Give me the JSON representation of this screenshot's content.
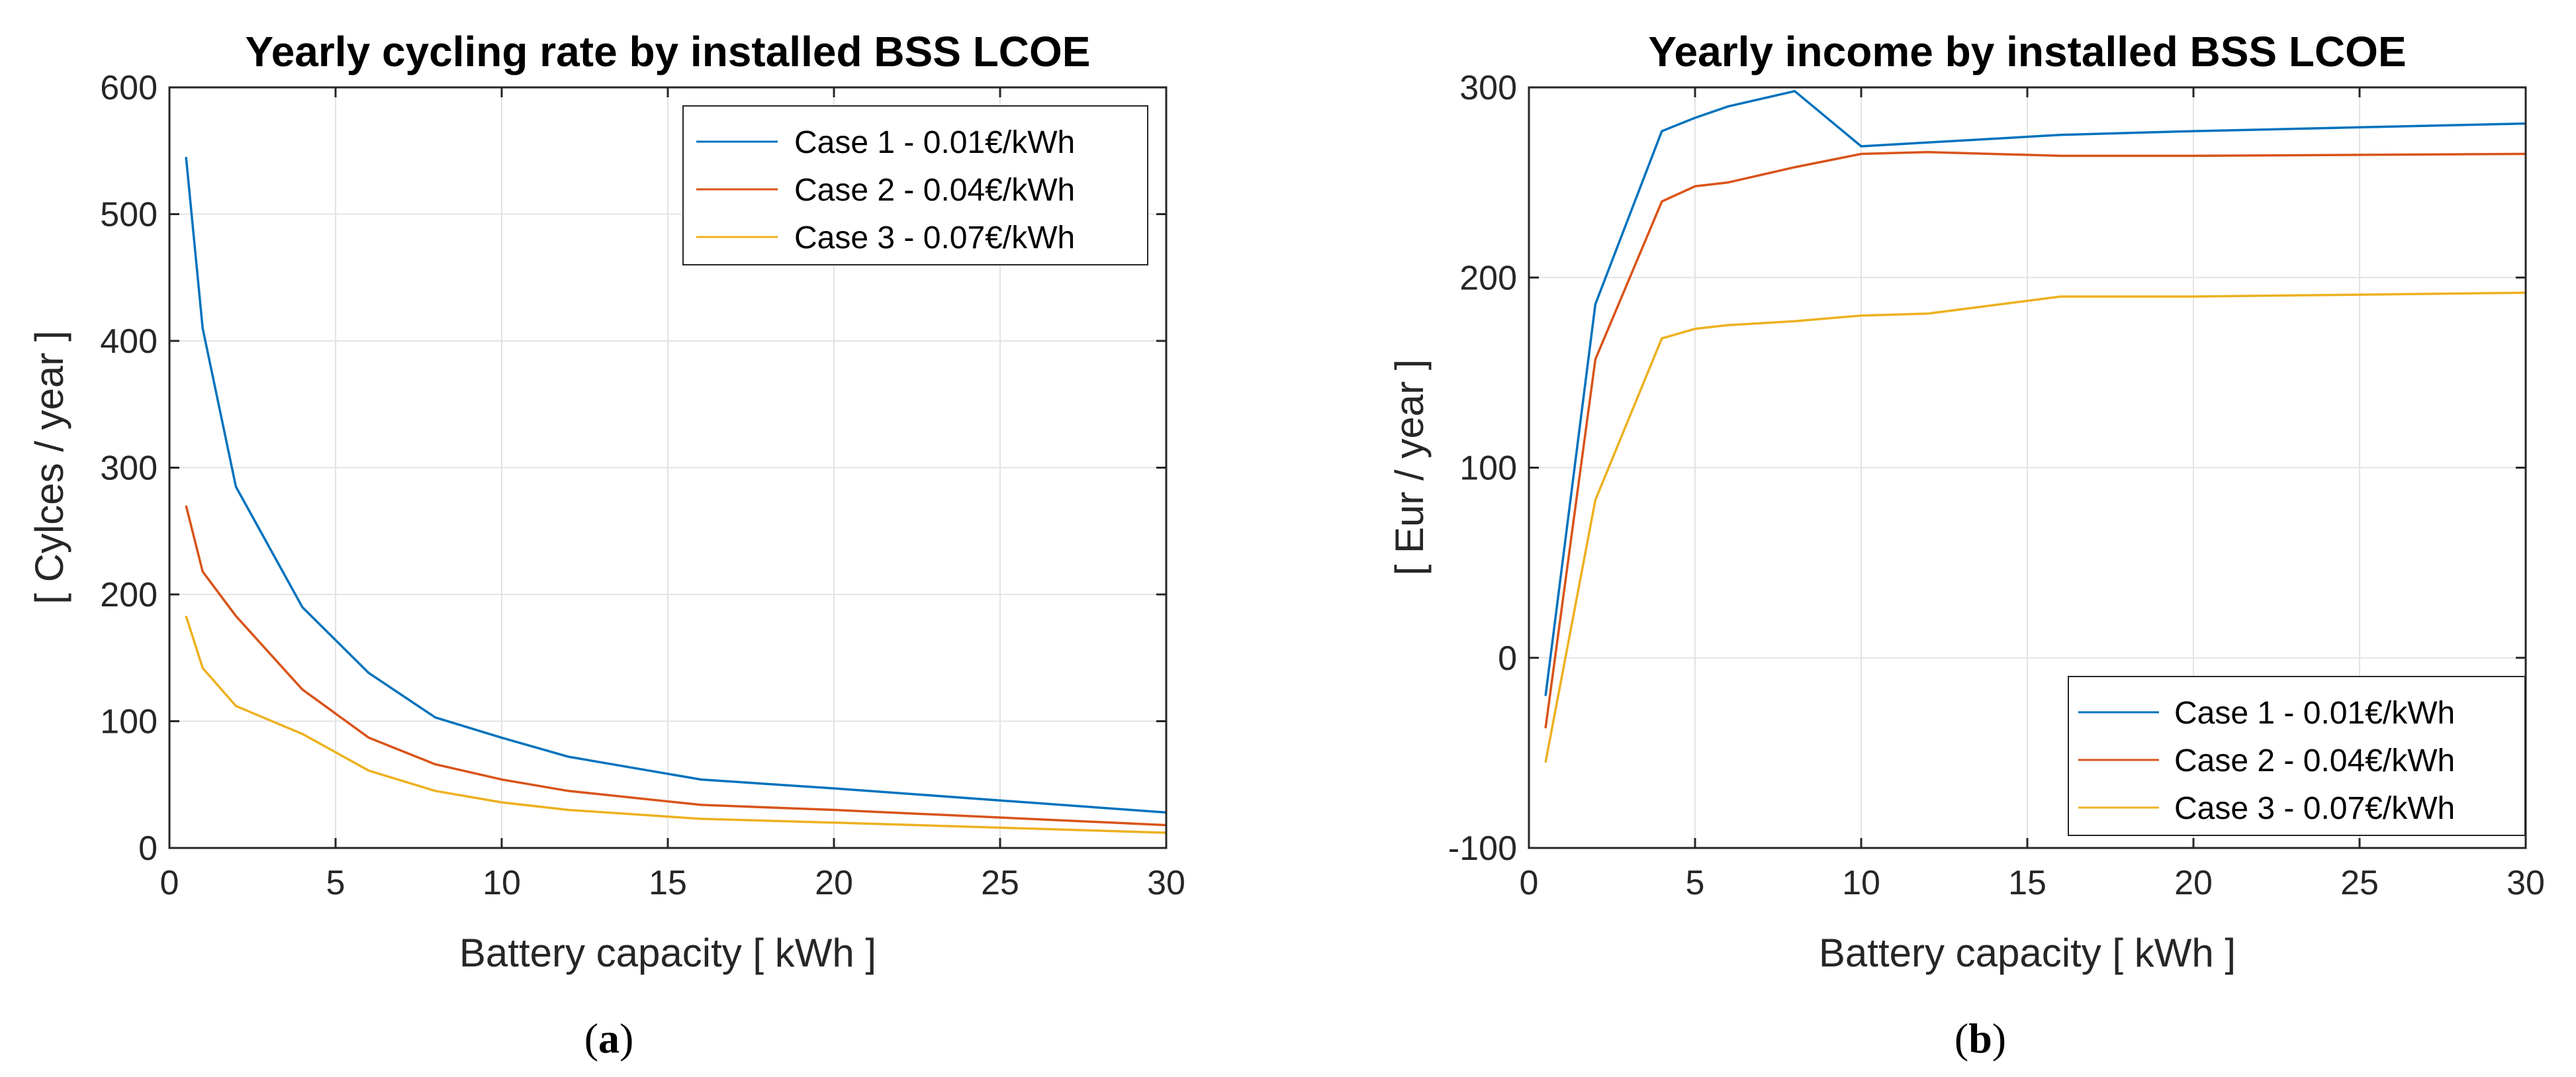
{
  "figure": {
    "captions": [
      "(a)",
      "(b)"
    ]
  },
  "chart_data": [
    {
      "type": "line",
      "title": "Yearly cycling rate by installed BSS LCOE",
      "xlabel": "Battery capacity [ kWh ]",
      "ylabel": "[ Cylces / year ]",
      "xlim": [
        0,
        30
      ],
      "ylim": [
        0,
        600
      ],
      "xticks": [
        0,
        5,
        10,
        15,
        20,
        25,
        30
      ],
      "yticks": [
        0,
        100,
        200,
        300,
        400,
        500,
        600
      ],
      "grid": true,
      "legend_position": "top-right",
      "series": [
        {
          "name": "Case 1 - 0.01€/kWh",
          "color": "#0072BD",
          "x": [
            0.5,
            1,
            2,
            4,
            6,
            8,
            10,
            12,
            16,
            20,
            30
          ],
          "y": [
            545,
            410,
            285,
            190,
            138,
            103,
            87,
            72,
            54,
            47,
            28
          ]
        },
        {
          "name": "Case 2 - 0.04€/kWh",
          "color": "#D95319",
          "x": [
            0.5,
            1,
            2,
            4,
            6,
            8,
            10,
            12,
            16,
            20,
            30
          ],
          "y": [
            270,
            218,
            183,
            125,
            87,
            66,
            54,
            45,
            34,
            30,
            18
          ]
        },
        {
          "name": "Case 3 - 0.07€/kWh",
          "color": "#EDB120",
          "x": [
            0.5,
            1,
            2,
            4,
            6,
            8,
            10,
            12,
            16,
            20,
            30
          ],
          "y": [
            183,
            142,
            112,
            90,
            61,
            45,
            36,
            30,
            23,
            20,
            12
          ]
        }
      ]
    },
    {
      "type": "line",
      "title": "Yearly income by installed BSS LCOE",
      "xlabel": "Battery capacity [ kWh ]",
      "ylabel": "[ Eur / year ]",
      "xlim": [
        0,
        30
      ],
      "ylim": [
        -100,
        300
      ],
      "xticks": [
        0,
        5,
        10,
        15,
        20,
        25,
        30
      ],
      "yticks": [
        -100,
        0,
        100,
        200,
        300
      ],
      "grid": true,
      "legend_position": "bottom-right",
      "series": [
        {
          "name": "Case 1 - 0.01€/kWh",
          "color": "#0072BD",
          "x": [
            0.5,
            2,
            4,
            5,
            6,
            8,
            10,
            12,
            16,
            20,
            30
          ],
          "y": [
            -20,
            186,
            277,
            284,
            290,
            298,
            269,
            271,
            275,
            277,
            281
          ]
        },
        {
          "name": "Case 2 - 0.04€/kWh",
          "color": "#D95319",
          "x": [
            0.5,
            2,
            4,
            5,
            6,
            8,
            10,
            12,
            16,
            20,
            30
          ],
          "y": [
            -37,
            157,
            240,
            248,
            250,
            258,
            265,
            266,
            264,
            264,
            265
          ]
        },
        {
          "name": "Case 3 - 0.07€/kWh",
          "color": "#EDB120",
          "x": [
            0.5,
            2,
            4,
            5,
            6,
            8,
            10,
            12,
            16,
            20,
            30
          ],
          "y": [
            -55,
            83,
            168,
            173,
            175,
            177,
            180,
            181,
            190,
            190,
            192
          ]
        }
      ]
    }
  ]
}
